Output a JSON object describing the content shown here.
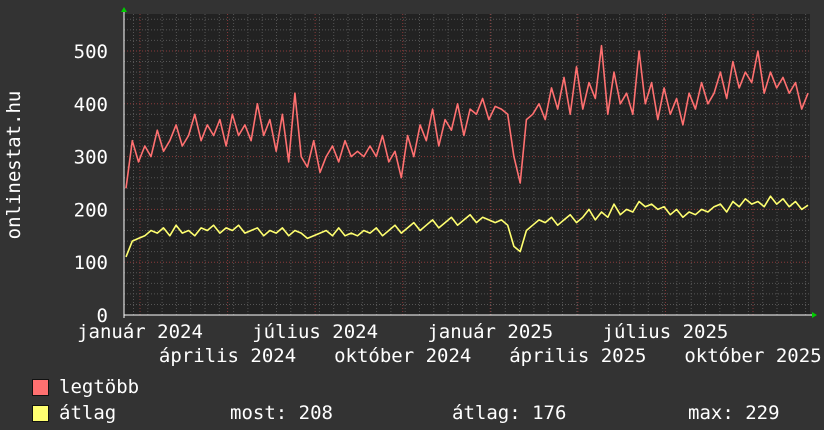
{
  "chart_data": {
    "type": "line",
    "ylabel": "onlinestat.hu",
    "ylim": [
      0,
      570
    ],
    "yticks": [
      0,
      100,
      200,
      300,
      400,
      500
    ],
    "xlabels": [
      "január 2024",
      "április 2024",
      "július 2024",
      "október 2024",
      "január 2025",
      "április 2025",
      "július 2025",
      "október 2025"
    ],
    "grid": true,
    "series": [
      {
        "name": "legtöbb",
        "color": "#ff7070",
        "values": [
          240,
          330,
          290,
          320,
          300,
          350,
          310,
          330,
          360,
          320,
          340,
          380,
          330,
          360,
          340,
          370,
          320,
          380,
          340,
          360,
          330,
          400,
          340,
          370,
          310,
          380,
          290,
          420,
          300,
          280,
          330,
          270,
          300,
          320,
          290,
          330,
          300,
          310,
          300,
          320,
          300,
          340,
          290,
          310,
          260,
          340,
          300,
          360,
          330,
          390,
          320,
          370,
          350,
          400,
          340,
          390,
          380,
          410,
          370,
          395,
          390,
          380,
          300,
          250,
          370,
          380,
          400,
          370,
          430,
          390,
          450,
          380,
          470,
          390,
          440,
          410,
          510,
          380,
          460,
          400,
          420,
          380,
          500,
          400,
          440,
          370,
          430,
          380,
          410,
          360,
          420,
          390,
          440,
          400,
          420,
          460,
          410,
          480,
          430,
          460,
          440,
          500,
          420,
          460,
          430,
          450,
          420,
          440,
          390,
          420
        ]
      },
      {
        "name": "átlag",
        "color": "#ffff70",
        "values": [
          110,
          140,
          145,
          150,
          160,
          155,
          165,
          150,
          170,
          155,
          160,
          150,
          165,
          160,
          170,
          155,
          165,
          160,
          170,
          155,
          160,
          165,
          150,
          160,
          155,
          165,
          150,
          160,
          155,
          145,
          150,
          155,
          160,
          150,
          165,
          150,
          155,
          150,
          160,
          155,
          165,
          150,
          160,
          170,
          155,
          165,
          175,
          160,
          170,
          180,
          165,
          175,
          185,
          170,
          180,
          190,
          175,
          185,
          180,
          175,
          180,
          170,
          130,
          120,
          160,
          170,
          180,
          175,
          185,
          170,
          180,
          190,
          175,
          185,
          200,
          180,
          195,
          185,
          210,
          190,
          200,
          195,
          215,
          205,
          210,
          200,
          205,
          190,
          200,
          185,
          195,
          190,
          200,
          195,
          205,
          210,
          195,
          215,
          205,
          220,
          210,
          215,
          205,
          225,
          210,
          220,
          205,
          215,
          200,
          208
        ]
      }
    ]
  },
  "legend": {
    "items": [
      {
        "label": "legtöbb",
        "color": "#ff7070"
      },
      {
        "label": "átlag",
        "color": "#ffff70"
      }
    ],
    "stats": {
      "most": "most: 208",
      "atlag": "átlag: 176",
      "max": "max: 229"
    }
  },
  "colors": {
    "background": "#333333",
    "plot": "#222222",
    "grid_minor": "#555555",
    "grid_major": "#8a3a3a",
    "axis_arrow": "#00cc00"
  }
}
